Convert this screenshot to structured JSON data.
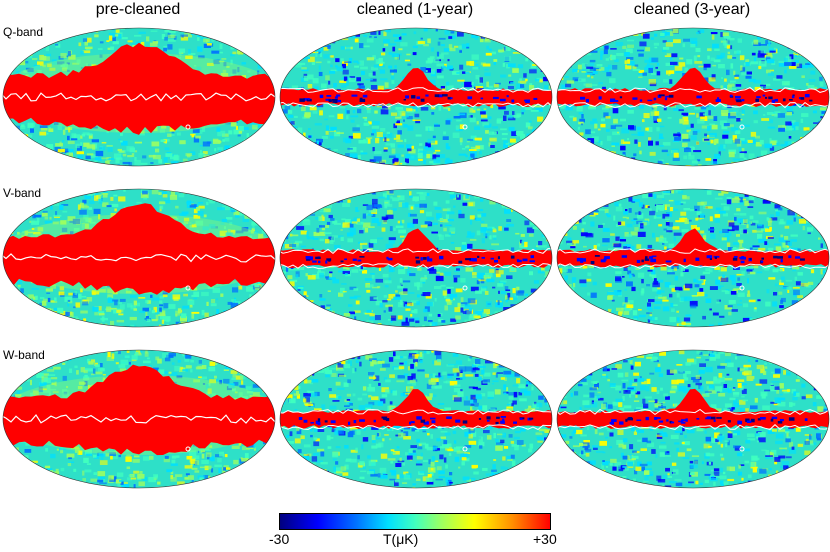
{
  "figure": {
    "column_titles": [
      "pre-cleaned",
      "cleaned (1-year)",
      "cleaned (3-year)"
    ],
    "row_titles": [
      "Q-band",
      "V-band",
      "W-band"
    ],
    "maps": [
      {
        "band": "Q-band",
        "column": "pre-cleaned"
      },
      {
        "band": "Q-band",
        "column": "cleaned (1-year)"
      },
      {
        "band": "Q-band",
        "column": "cleaned (3-year)"
      },
      {
        "band": "V-band",
        "column": "pre-cleaned"
      },
      {
        "band": "V-band",
        "column": "cleaned (1-year)"
      },
      {
        "band": "V-band",
        "column": "cleaned (3-year)"
      },
      {
        "band": "W-band",
        "column": "pre-cleaned"
      },
      {
        "band": "W-band",
        "column": "cleaned (1-year)"
      },
      {
        "band": "W-band",
        "column": "cleaned (3-year)"
      }
    ]
  },
  "colorbar": {
    "min_label": "-30",
    "max_label": "+30",
    "unit_label": "T(μK)",
    "colors": [
      "#00007f",
      "#0000ff",
      "#0070ff",
      "#00dfff",
      "#40ffbf",
      "#9fff5f",
      "#ffff00",
      "#ff8f00",
      "#ff0000"
    ]
  },
  "colors": {
    "saturated_red": "#ff0000",
    "background_field": "#2ee0c8",
    "contour": "#ffffff"
  }
}
